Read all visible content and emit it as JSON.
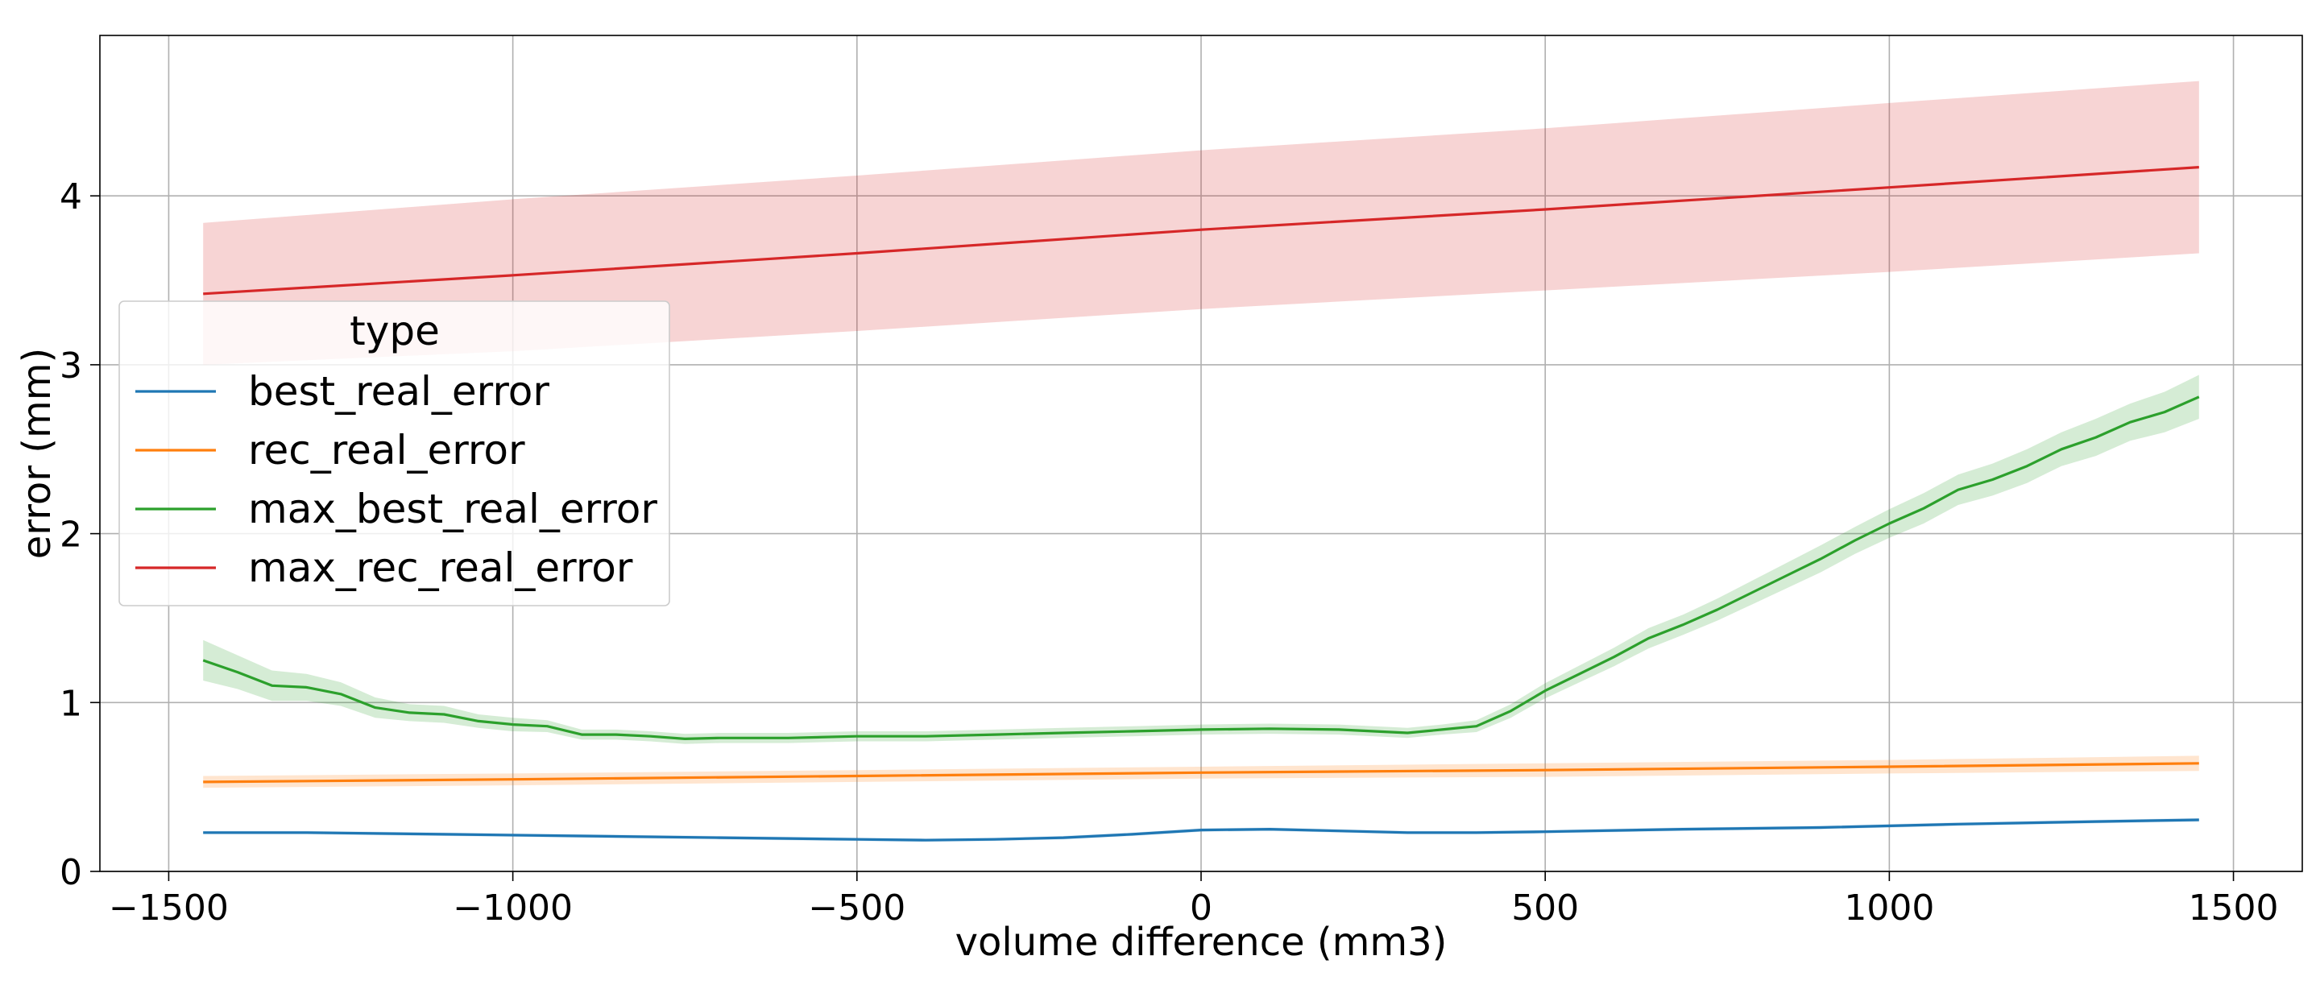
{
  "chart_data": {
    "type": "line",
    "title": "",
    "xlabel": "volume difference (mm3)",
    "ylabel": "error (mm)",
    "xlim": [
      -1600,
      1600
    ],
    "ylim": [
      0,
      4.95
    ],
    "xticks": [
      -1500,
      -1000,
      -500,
      0,
      500,
      1000,
      1500
    ],
    "xtick_labels": [
      "−1500",
      "−1000",
      "−500",
      "0",
      "500",
      "1000",
      "1500"
    ],
    "yticks": [
      0,
      1,
      2,
      3,
      4
    ],
    "ytick_labels": [
      "0",
      "1",
      "2",
      "3",
      "4"
    ],
    "grid": true,
    "legend": {
      "title": "type",
      "placement": "center-left"
    },
    "series": [
      {
        "name": "best_real_error",
        "color": "#1f77b4",
        "x": [
          -1450,
          -1300,
          -1100,
          -900,
          -700,
          -500,
          -400,
          -300,
          -200,
          -100,
          0,
          100,
          200,
          300,
          400,
          500,
          700,
          900,
          1100,
          1300,
          1450
        ],
        "values": [
          0.23,
          0.23,
          0.22,
          0.21,
          0.2,
          0.19,
          0.185,
          0.19,
          0.2,
          0.22,
          0.245,
          0.25,
          0.24,
          0.23,
          0.23,
          0.235,
          0.25,
          0.26,
          0.28,
          0.295,
          0.305
        ],
        "band_half_width": [
          0.01,
          0.01,
          0.01,
          0.01,
          0.01,
          0.01,
          0.01,
          0.01,
          0.01,
          0.01,
          0.01,
          0.01,
          0.01,
          0.01,
          0.01,
          0.01,
          0.01,
          0.01,
          0.01,
          0.01,
          0.01
        ]
      },
      {
        "name": "rec_real_error",
        "color": "#ff7f0e",
        "x": [
          -1450,
          -1000,
          -500,
          0,
          500,
          1000,
          1450
        ],
        "values": [
          0.53,
          0.545,
          0.565,
          0.585,
          0.6,
          0.62,
          0.64
        ],
        "band_half_width": [
          0.035,
          0.035,
          0.035,
          0.035,
          0.04,
          0.04,
          0.045
        ]
      },
      {
        "name": "max_best_real_error",
        "color": "#2ca02c",
        "x": [
          -1450,
          -1400,
          -1350,
          -1300,
          -1250,
          -1200,
          -1150,
          -1100,
          -1050,
          -1000,
          -950,
          -900,
          -850,
          -800,
          -750,
          -700,
          -600,
          -500,
          -400,
          -300,
          -200,
          -100,
          0,
          100,
          200,
          300,
          350,
          400,
          450,
          500,
          550,
          600,
          650,
          700,
          750,
          800,
          850,
          900,
          950,
          1000,
          1050,
          1100,
          1150,
          1200,
          1250,
          1300,
          1350,
          1400,
          1450
        ],
        "values": [
          1.25,
          1.18,
          1.1,
          1.09,
          1.05,
          0.97,
          0.94,
          0.93,
          0.89,
          0.87,
          0.86,
          0.81,
          0.81,
          0.8,
          0.785,
          0.79,
          0.79,
          0.8,
          0.8,
          0.81,
          0.82,
          0.83,
          0.84,
          0.845,
          0.84,
          0.82,
          0.84,
          0.86,
          0.95,
          1.07,
          1.17,
          1.27,
          1.38,
          1.46,
          1.55,
          1.65,
          1.75,
          1.85,
          1.96,
          2.06,
          2.15,
          2.26,
          2.32,
          2.4,
          2.5,
          2.57,
          2.66,
          2.72,
          2.81
        ],
        "band_half_width": [
          0.12,
          0.1,
          0.09,
          0.08,
          0.07,
          0.06,
          0.05,
          0.05,
          0.04,
          0.04,
          0.035,
          0.03,
          0.03,
          0.03,
          0.03,
          0.03,
          0.03,
          0.03,
          0.03,
          0.03,
          0.03,
          0.03,
          0.03,
          0.03,
          0.03,
          0.03,
          0.03,
          0.035,
          0.04,
          0.045,
          0.05,
          0.055,
          0.06,
          0.06,
          0.065,
          0.07,
          0.075,
          0.08,
          0.08,
          0.085,
          0.09,
          0.09,
          0.095,
          0.1,
          0.1,
          0.11,
          0.11,
          0.12,
          0.13
        ]
      },
      {
        "name": "max_rec_real_error",
        "color": "#d62728",
        "x": [
          -1450,
          -1000,
          -500,
          0,
          500,
          1000,
          1450
        ],
        "values": [
          3.42,
          3.53,
          3.66,
          3.8,
          3.92,
          4.05,
          4.17
        ],
        "band_half_width": [
          0.42,
          0.45,
          0.46,
          0.47,
          0.48,
          0.5,
          0.51
        ]
      }
    ]
  }
}
